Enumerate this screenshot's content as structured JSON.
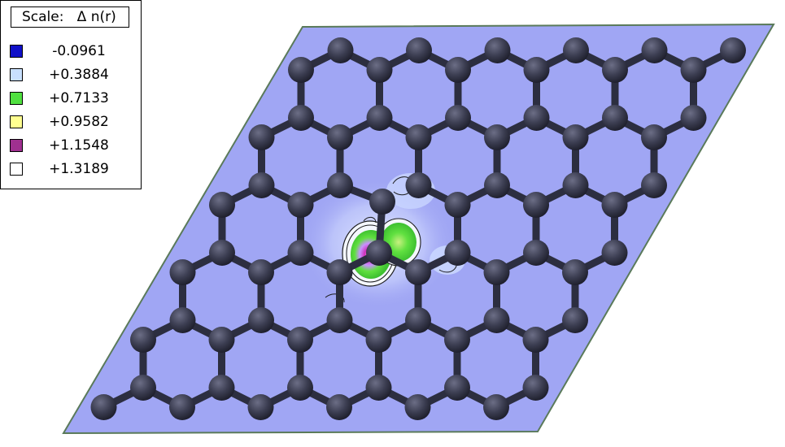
{
  "legend": {
    "title": "Scale:   Δ n(r)",
    "entries": [
      {
        "value": "-0.0961",
        "color": "#1010c8"
      },
      {
        "value": "+0.3884",
        "color": "#c8e0ff"
      },
      {
        "value": "+0.7133",
        "color": "#50e040"
      },
      {
        "value": "+0.9582",
        "color": "#ffff90"
      },
      {
        "value": "+1.1548",
        "color": "#a03090"
      },
      {
        "value": "+1.3189",
        "color": "#ffffff"
      }
    ]
  },
  "colors": {
    "background": "#a0a6f4",
    "atom": "#3c3e52",
    "bond": "#2c2e40"
  }
}
